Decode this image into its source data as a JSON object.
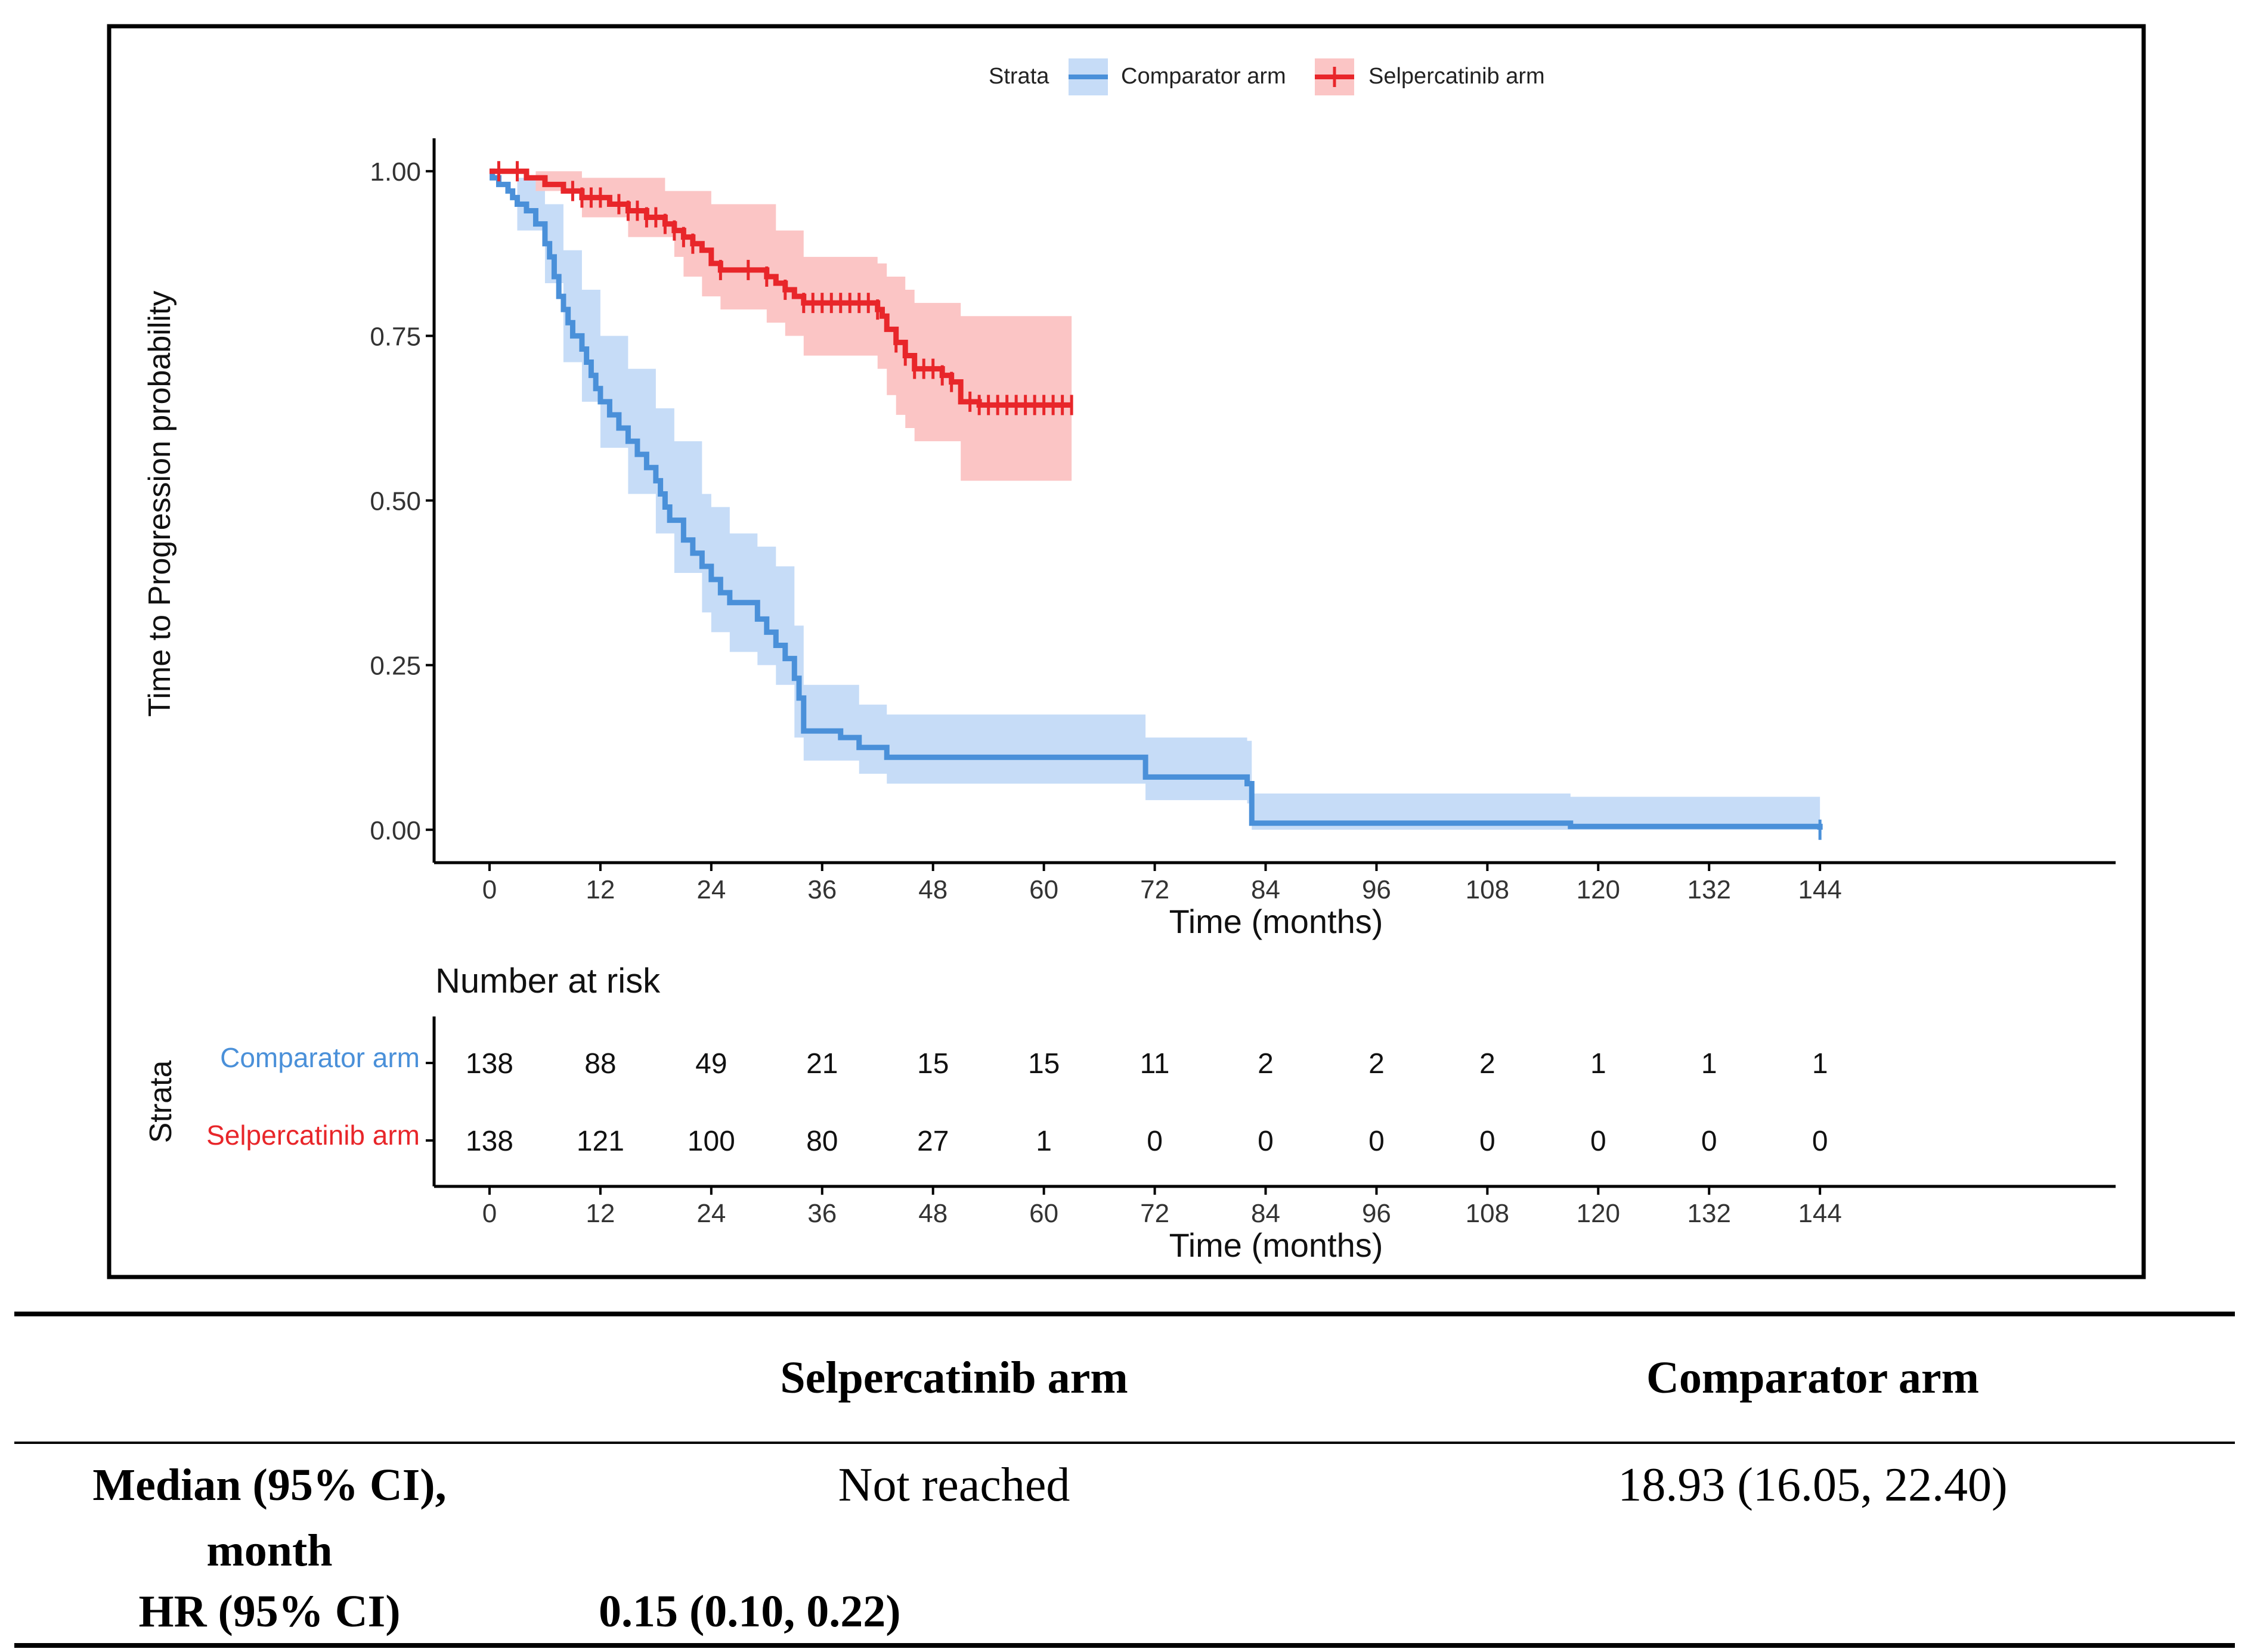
{
  "chart_data": {
    "type": "line",
    "subtype": "kaplan-meier",
    "xlabel": "Time (months)",
    "ylabel": "Time to Progression probability",
    "xlim": [
      -6,
      176
    ],
    "ylim": [
      -0.05,
      1.05
    ],
    "x_ticks": [
      0,
      12,
      24,
      36,
      48,
      60,
      72,
      84,
      96,
      108,
      120,
      132,
      144
    ],
    "y_ticks": [
      0.0,
      0.25,
      0.5,
      0.75,
      1.0
    ],
    "y_tick_labels": [
      "0.00",
      "0.25",
      "0.50",
      "0.75",
      "1.00"
    ],
    "legend": {
      "title": "Strata",
      "position": "top",
      "entries": [
        "Comparator arm",
        "Selpercatinib arm"
      ]
    },
    "colors": {
      "Comparator arm": "#4a90d9",
      "Selpercatinib arm": "#e8262a"
    },
    "series": [
      {
        "name": "Comparator arm",
        "steps": [
          [
            0,
            1.0
          ],
          [
            0.3,
            0.99
          ],
          [
            1,
            0.98
          ],
          [
            2,
            0.97
          ],
          [
            2.5,
            0.96
          ],
          [
            3,
            0.95
          ],
          [
            4,
            0.94
          ],
          [
            5,
            0.92
          ],
          [
            6,
            0.89
          ],
          [
            6.5,
            0.87
          ],
          [
            7,
            0.84
          ],
          [
            7.5,
            0.81
          ],
          [
            8,
            0.79
          ],
          [
            8.5,
            0.77
          ],
          [
            9,
            0.75
          ],
          [
            10,
            0.73
          ],
          [
            10.5,
            0.71
          ],
          [
            11,
            0.69
          ],
          [
            11.5,
            0.67
          ],
          [
            12,
            0.65
          ],
          [
            13,
            0.63
          ],
          [
            14,
            0.61
          ],
          [
            15,
            0.59
          ],
          [
            16,
            0.57
          ],
          [
            17,
            0.55
          ],
          [
            18,
            0.53
          ],
          [
            18.5,
            0.51
          ],
          [
            19,
            0.49
          ],
          [
            19.5,
            0.47
          ],
          [
            21,
            0.44
          ],
          [
            22,
            0.42
          ],
          [
            23,
            0.4
          ],
          [
            24,
            0.38
          ],
          [
            25,
            0.36
          ],
          [
            26,
            0.345
          ],
          [
            29,
            0.32
          ],
          [
            30,
            0.3
          ],
          [
            31,
            0.28
          ],
          [
            32,
            0.26
          ],
          [
            33,
            0.23
          ],
          [
            33.5,
            0.2
          ],
          [
            34,
            0.15
          ],
          [
            38,
            0.14
          ],
          [
            40,
            0.125
          ],
          [
            43,
            0.11
          ],
          [
            71,
            0.08
          ],
          [
            82,
            0.07
          ],
          [
            82.5,
            0.01
          ],
          [
            117,
            0.005
          ],
          [
            144,
            0.0
          ]
        ],
        "ci_lower": [
          [
            0,
            1.0
          ],
          [
            3,
            0.91
          ],
          [
            6,
            0.83
          ],
          [
            8,
            0.71
          ],
          [
            10,
            0.65
          ],
          [
            12,
            0.58
          ],
          [
            15,
            0.51
          ],
          [
            18,
            0.45
          ],
          [
            20,
            0.39
          ],
          [
            23,
            0.33
          ],
          [
            24,
            0.3
          ],
          [
            26,
            0.27
          ],
          [
            29,
            0.25
          ],
          [
            31,
            0.22
          ],
          [
            33,
            0.14
          ],
          [
            34,
            0.105
          ],
          [
            40,
            0.085
          ],
          [
            43,
            0.07
          ],
          [
            71,
            0.045
          ],
          [
            82,
            0.04
          ],
          [
            82.5,
            0.0
          ],
          [
            144,
            0.0
          ]
        ],
        "ci_upper": [
          [
            0,
            1.0
          ],
          [
            3,
            0.99
          ],
          [
            6,
            0.95
          ],
          [
            8,
            0.88
          ],
          [
            10,
            0.82
          ],
          [
            12,
            0.75
          ],
          [
            15,
            0.7
          ],
          [
            18,
            0.64
          ],
          [
            20,
            0.59
          ],
          [
            23,
            0.51
          ],
          [
            24,
            0.49
          ],
          [
            26,
            0.45
          ],
          [
            29,
            0.43
          ],
          [
            31,
            0.4
          ],
          [
            33,
            0.31
          ],
          [
            34,
            0.22
          ],
          [
            40,
            0.19
          ],
          [
            43,
            0.175
          ],
          [
            71,
            0.14
          ],
          [
            82,
            0.135
          ],
          [
            82.5,
            0.055
          ],
          [
            117,
            0.05
          ],
          [
            144,
            0.05
          ]
        ],
        "censor_times": [
          144
        ]
      },
      {
        "name": "Selpercatinib arm",
        "steps": [
          [
            0,
            1.0
          ],
          [
            4,
            0.99
          ],
          [
            6,
            0.98
          ],
          [
            8,
            0.97
          ],
          [
            10,
            0.96
          ],
          [
            13,
            0.95
          ],
          [
            15,
            0.94
          ],
          [
            17,
            0.93
          ],
          [
            19,
            0.92
          ],
          [
            20,
            0.91
          ],
          [
            21,
            0.9
          ],
          [
            22,
            0.89
          ],
          [
            23,
            0.88
          ],
          [
            24,
            0.86
          ],
          [
            25,
            0.85
          ],
          [
            30,
            0.84
          ],
          [
            31,
            0.83
          ],
          [
            32,
            0.82
          ],
          [
            33,
            0.81
          ],
          [
            34,
            0.8
          ],
          [
            42,
            0.79
          ],
          [
            42.5,
            0.78
          ],
          [
            43,
            0.76
          ],
          [
            44,
            0.74
          ],
          [
            45,
            0.72
          ],
          [
            46,
            0.7
          ],
          [
            49,
            0.69
          ],
          [
            50,
            0.68
          ],
          [
            51,
            0.65
          ],
          [
            53,
            0.645
          ],
          [
            63,
            0.645
          ]
        ],
        "ci_lower": [
          [
            0,
            1.0
          ],
          [
            5,
            0.97
          ],
          [
            10,
            0.93
          ],
          [
            15,
            0.9
          ],
          [
            20,
            0.87
          ],
          [
            21,
            0.84
          ],
          [
            23,
            0.81
          ],
          [
            25,
            0.79
          ],
          [
            30,
            0.77
          ],
          [
            32,
            0.75
          ],
          [
            34,
            0.72
          ],
          [
            42,
            0.7
          ],
          [
            43,
            0.66
          ],
          [
            44,
            0.63
          ],
          [
            45,
            0.61
          ],
          [
            46,
            0.59
          ],
          [
            51,
            0.53
          ],
          [
            63,
            0.53
          ]
        ],
        "ci_upper": [
          [
            0,
            1.0
          ],
          [
            5,
            1.0
          ],
          [
            10,
            0.99
          ],
          [
            15,
            0.99
          ],
          [
            19,
            0.97
          ],
          [
            24,
            0.95
          ],
          [
            31,
            0.91
          ],
          [
            34,
            0.87
          ],
          [
            42,
            0.86
          ],
          [
            43,
            0.84
          ],
          [
            45,
            0.82
          ],
          [
            46,
            0.8
          ],
          [
            51,
            0.78
          ],
          [
            63,
            0.78
          ]
        ],
        "censor_times": [
          1,
          3,
          9,
          10,
          11,
          12,
          14,
          15,
          16,
          17,
          18,
          19,
          20,
          21,
          22,
          25,
          28,
          30,
          32,
          34,
          35,
          36,
          37,
          38,
          39,
          40,
          41,
          42,
          44,
          45,
          46,
          47,
          48,
          49,
          50,
          52,
          53,
          54,
          55,
          56,
          57,
          58,
          59,
          60,
          61,
          62,
          63
        ]
      }
    ],
    "risk_table": {
      "title": "Number at risk",
      "strata_label": "Strata",
      "xlabel": "Time (months)",
      "times": [
        0,
        12,
        24,
        36,
        48,
        60,
        72,
        84,
        96,
        108,
        120,
        132,
        144
      ],
      "rows": [
        {
          "name": "Comparator arm",
          "counts": [
            138,
            88,
            49,
            21,
            15,
            15,
            11,
            2,
            2,
            2,
            1,
            1,
            1
          ]
        },
        {
          "name": "Selpercatinib arm",
          "counts": [
            138,
            121,
            100,
            80,
            27,
            1,
            0,
            0,
            0,
            0,
            0,
            0,
            0
          ]
        }
      ]
    }
  },
  "table": {
    "header": {
      "col1": "Selpercatinib arm",
      "col2": "Comparator arm"
    },
    "median": {
      "label_line1": "Median (95% CI),",
      "label_line2": "month",
      "selpercatinib": "Not reached",
      "comparator": "18.93 (16.05, 22.40)"
    },
    "hr": {
      "label": "HR (95% CI)",
      "value": "0.15 (0.10, 0.22)"
    }
  }
}
